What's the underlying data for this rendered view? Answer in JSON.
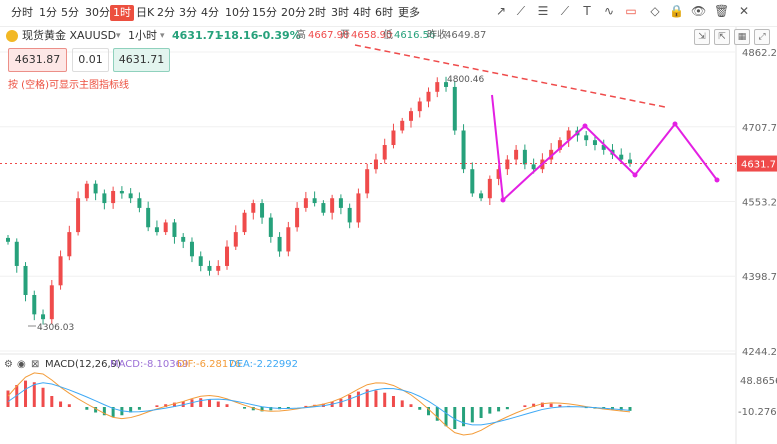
{
  "toolbar": {
    "timeframes": [
      "分时",
      "1分",
      "5分",
      "30分",
      "1时",
      "日K",
      "2分",
      "3分",
      "4分",
      "10分",
      "15分",
      "20分",
      "2时",
      "3时",
      "4时",
      "6时",
      "更多"
    ],
    "active_index": 4,
    "tools": [
      "cursor-icon",
      "ray-icon",
      "fib-icon",
      "trendline-icon",
      "text-icon",
      "zigzag-icon",
      "rect-icon",
      "eraser-icon",
      "lock-icon",
      "eye-icon",
      "trash-icon",
      "delete-icon"
    ]
  },
  "info": {
    "symbol": "现货黄金 XAUUSD",
    "period": "1小时",
    "price": "4631.71",
    "change": "-18.16",
    "change_pct": "-0.39%",
    "high_label": "高",
    "high": "4667.98",
    "open_label": "开",
    "open": "4658.90",
    "low_label": "低",
    "low": "4616.56",
    "prev_label": "昨收",
    "prev": "4649.87"
  },
  "order": {
    "sell": "4631.87",
    "qty": "0.01",
    "buy": "4631.71"
  },
  "hint": "按 (空格)可显示主图指标线",
  "macd": {
    "name": "MACD(12,26,9)",
    "macd": "MACD:-8.10369",
    "dif": "DIF:-6.28176",
    "dea": "DEA:-2.22992"
  },
  "colors": {
    "up": "#ef4b4b",
    "down": "#26a17b",
    "drawing": "#e320e3",
    "trend": "#ef4b4b",
    "dif": "#f39c3a",
    "dea": "#3fa9f5"
  },
  "chart_data": {
    "type": "candlestick",
    "y_ticks": [
      "4862.26",
      "4707.75",
      "4553.24",
      "4398.74",
      "4244.23"
    ],
    "ylim": [
      4244.23,
      4862.26
    ],
    "current_price_label": "4631.7",
    "annotations": [
      {
        "text": "4800.46"
      },
      {
        "text": "4306.03"
      }
    ],
    "macd_ticks": [
      "48.86565",
      "-10.27627"
    ],
    "close_path": [
      4470,
      4420,
      4360,
      4320,
      4310,
      4380,
      4440,
      4490,
      4560,
      4590,
      4570,
      4550,
      4575,
      4570,
      4560,
      4540,
      4500,
      4490,
      4510,
      4480,
      4470,
      4440,
      4420,
      4410,
      4420,
      4460,
      4490,
      4530,
      4550,
      4520,
      4480,
      4450,
      4500,
      4540,
      4560,
      4550,
      4530,
      4560,
      4540,
      4510,
      4570,
      4620,
      4640,
      4670,
      4700,
      4720,
      4740,
      4760,
      4780,
      4800,
      4790,
      4700,
      4620,
      4570,
      4560,
      4600,
      4620,
      4640,
      4660,
      4630,
      4620,
      4640,
      4660,
      4680,
      4700,
      4690,
      4680,
      4670,
      4660,
      4650,
      4640,
      4632
    ],
    "macd_hist": [
      30,
      40,
      48,
      45,
      35,
      20,
      10,
      5,
      0,
      -5,
      -10,
      -15,
      -18,
      -15,
      -10,
      -5,
      0,
      3,
      5,
      8,
      10,
      14,
      16,
      14,
      10,
      5,
      0,
      -3,
      -6,
      -8,
      -6,
      -4,
      -2,
      0,
      2,
      4,
      6,
      10,
      15,
      22,
      28,
      32,
      30,
      26,
      20,
      12,
      5,
      -5,
      -15,
      -25,
      -35,
      -40,
      -35,
      -28,
      -20,
      -12,
      -8,
      -4,
      0,
      3,
      6,
      8,
      6,
      4,
      2,
      0,
      -2,
      -3,
      -4,
      -5,
      -6,
      -7
    ]
  }
}
